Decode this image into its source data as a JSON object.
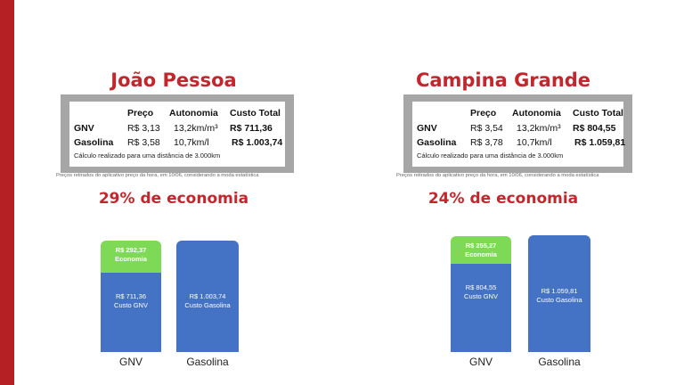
{
  "colors": {
    "accent": "#c1272d",
    "stripe": "#b52025",
    "gnv_bar": "#4472c4",
    "economy_bar": "#7ed957",
    "frame": "#a6a6a6"
  },
  "table_headers": [
    "Preço",
    "Autonomia",
    "Custo Total"
  ],
  "source_note": "Preços retirados do aplicativo preço da hora, em 10/06, considerando a moda estatística",
  "calc_note": "Cálculo realizado para uma distância de 3.000km",
  "cities": [
    {
      "name": "João Pessoa",
      "rows": [
        {
          "fuel": "GNV",
          "price": "R$ 3,13",
          "autonomy": "13,2km/m³",
          "total": "R$ 711,36"
        },
        {
          "fuel": "Gasolina",
          "price": "R$ 3,58",
          "autonomy": "10,7km/l",
          "total": "R$ 1.003,74"
        }
      ],
      "economy": "29% de economia"
    },
    {
      "name": "Campina Grande",
      "rows": [
        {
          "fuel": "GNV",
          "price": "R$ 3,54",
          "autonomy": "13,2km/m³",
          "total": "R$ 804,55"
        },
        {
          "fuel": "Gasolina",
          "price": "R$ 3,78",
          "autonomy": "10,7km/l",
          "total": "R$ 1.059,81"
        }
      ],
      "economy": "24% de economia"
    }
  ],
  "chart_data": [
    {
      "type": "bar",
      "stacked": true,
      "categories": [
        "GNV",
        "Gasolina"
      ],
      "series": [
        {
          "name": "Custo",
          "values": [
            711.36,
            1003.74
          ],
          "labels": [
            "R$ 711,36\nCusto GNV",
            "R$ 1.003,74\nCusto Gasolina"
          ]
        },
        {
          "name": "Economia",
          "values": [
            292.37,
            0
          ],
          "labels": [
            "R$ 292,37\nEconomia",
            ""
          ]
        }
      ]
    },
    {
      "type": "bar",
      "stacked": true,
      "categories": [
        "GNV",
        "Gasolina"
      ],
      "series": [
        {
          "name": "Custo",
          "values": [
            804.55,
            1059.81
          ],
          "labels": [
            "R$ 804,55\nCusto GNV",
            "R$ 1.059,81\nCusto Gasolina"
          ]
        },
        {
          "name": "Economia",
          "values": [
            255.27,
            0
          ],
          "labels": [
            "R$ 255,27\nEconomia",
            ""
          ]
        }
      ]
    }
  ]
}
